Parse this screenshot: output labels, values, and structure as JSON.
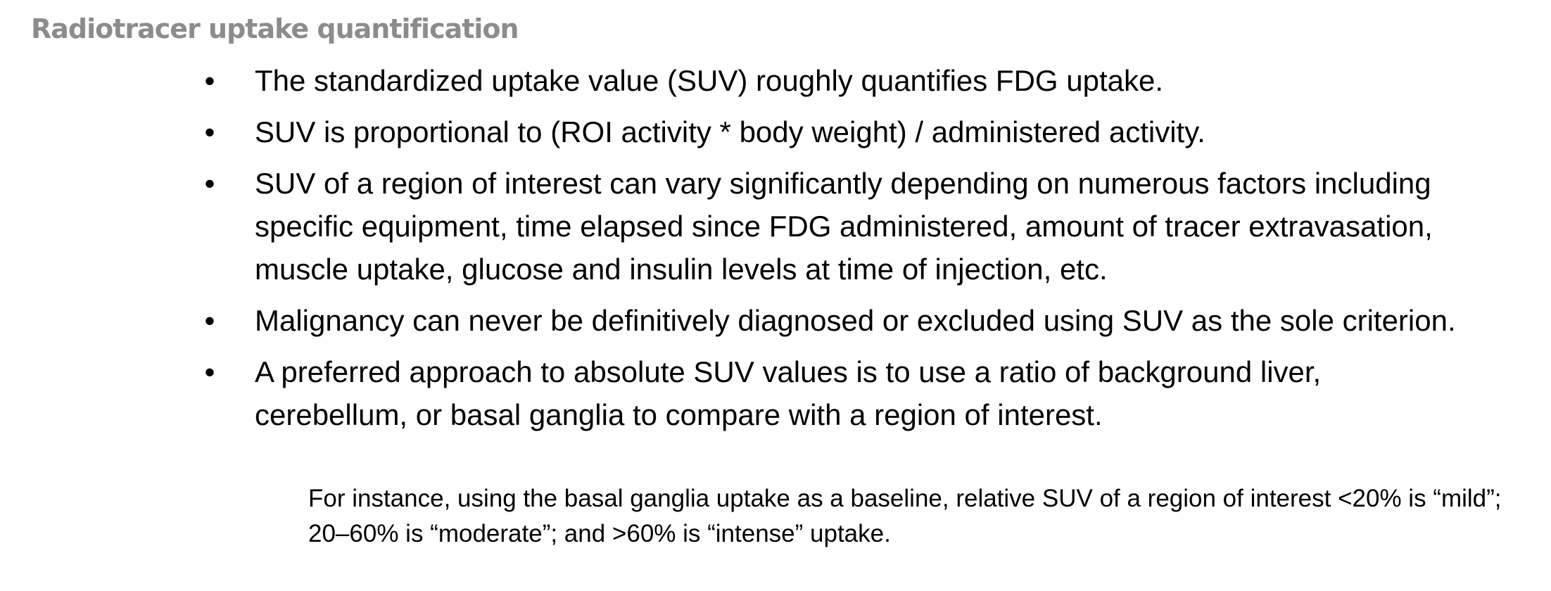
{
  "slide": {
    "title": "Radiotracer uptake quantification",
    "bullets": [
      "The standardized uptake value (SUV) roughly quantifies FDG uptake.",
      "SUV is proportional to (ROI activity * body weight) / administered activity.",
      "SUV of a region of interest can vary significantly depending on numerous factors including specific equipment, time elapsed since FDG administered, amount of tracer extravasation, muscle uptake, glucose and insulin levels at time of injection, etc.",
      "Malignancy can never be definitively diagnosed or excluded using SUV as the sole criterion.",
      "A preferred approach to absolute SUV values is to use a ratio of background liver, cerebellum, or basal ganglia to compare with a region of interest."
    ],
    "bullet_symbol": "•",
    "sub_note": "For instance, using the basal ganglia uptake as a baseline, relative SUV of a region of interest <20% is “mild”; 20–60% is “moderate”; and >60% is “intense” uptake.",
    "colors": {
      "title": "#8c8c8c",
      "text": "#000000",
      "background": "#ffffff"
    }
  }
}
